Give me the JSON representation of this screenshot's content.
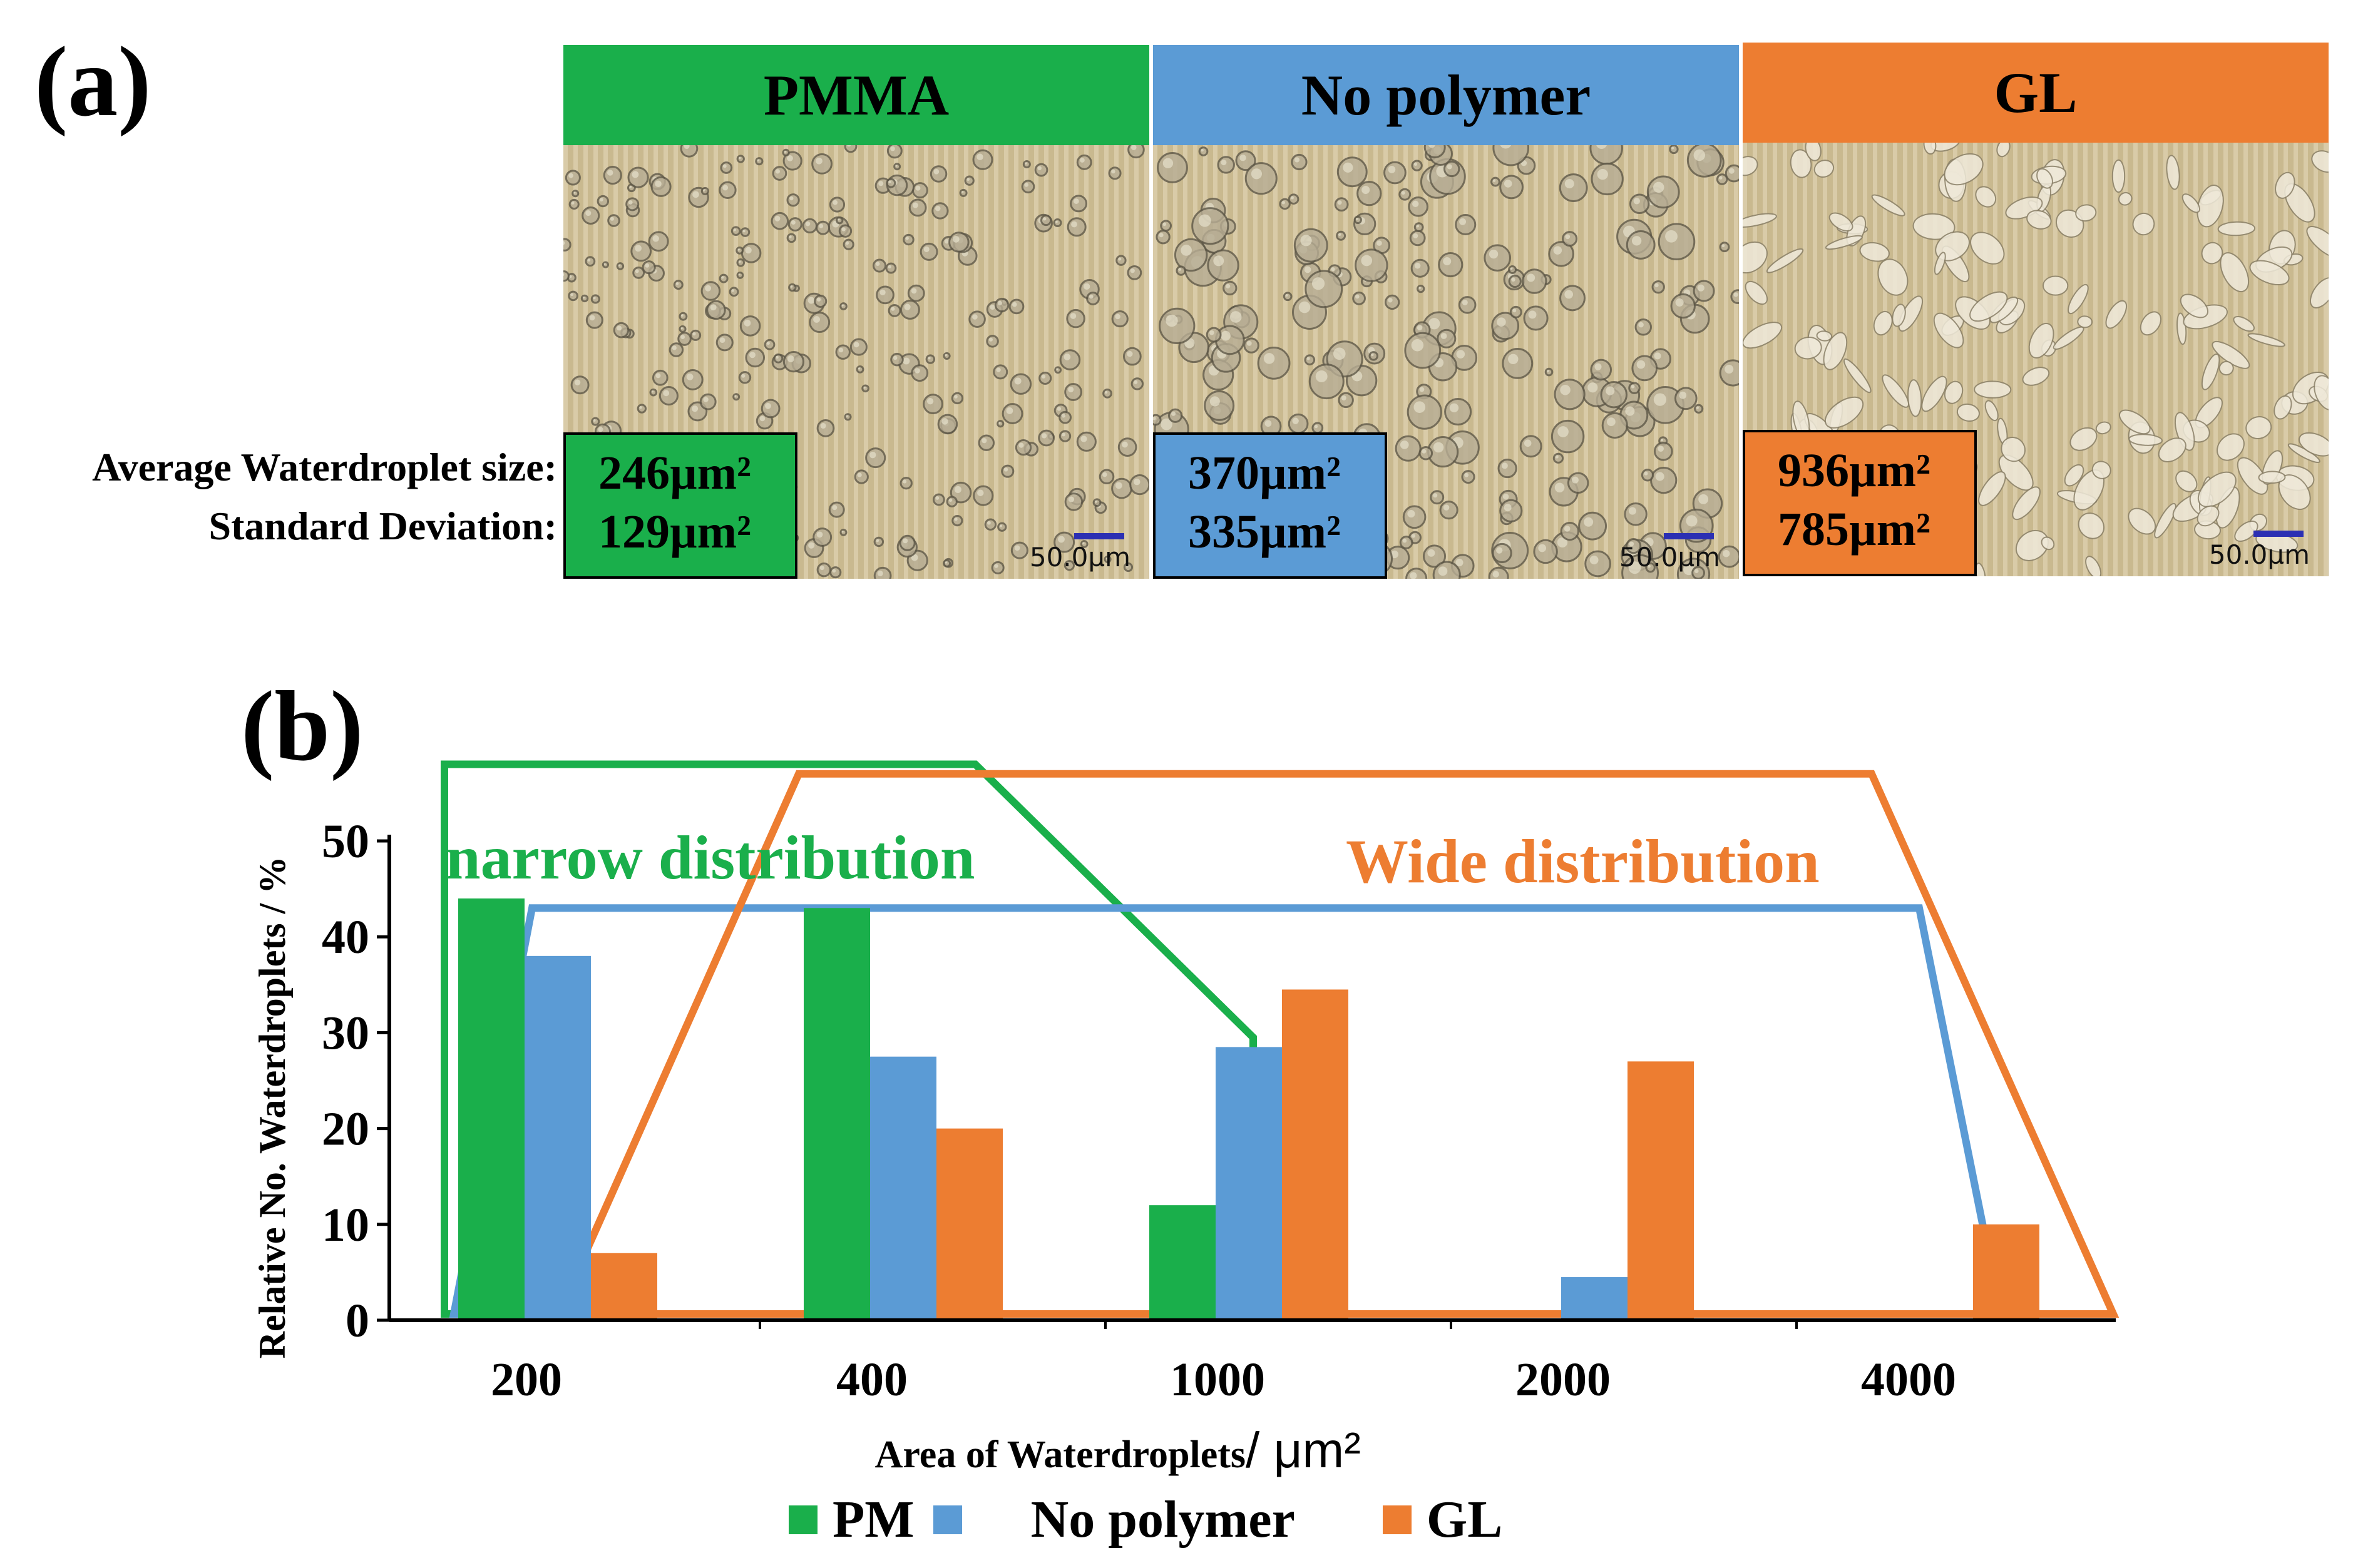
{
  "panel_a": {
    "label": "(a)",
    "row_labels": {
      "average": "Average Waterdroplet size:",
      "std": "Standard Deviation:"
    },
    "images": [
      {
        "title": "PMMA",
        "color": "#1aaf4b",
        "average": "246µm²",
        "std": "129µm²",
        "scale": "50.0µm"
      },
      {
        "title": "No polymer",
        "color": "#5b9bd5",
        "average": "370µm²",
        "std": "335µm²",
        "scale": "50.0µm"
      },
      {
        "title": "GL",
        "color": "#ed7d31",
        "average": "936µm²",
        "std": "785µm²",
        "scale": "50.0µm"
      }
    ]
  },
  "panel_b": {
    "label": "(b)"
  },
  "chart_data": {
    "type": "bar",
    "categories": [
      "200",
      "400",
      "1000",
      "2000",
      "4000"
    ],
    "series": [
      {
        "name": "PM",
        "color": "#1aaf4b",
        "values": [
          44,
          43,
          12,
          0,
          0
        ]
      },
      {
        "name": "No polymer",
        "color": "#5b9bd5",
        "values": [
          38,
          27.5,
          28.5,
          4.5,
          0
        ]
      },
      {
        "name": "GL",
        "color": "#ed7d31",
        "values": [
          7,
          20,
          34.5,
          27,
          10
        ]
      }
    ],
    "xlabel": "Area of Waterdroplets",
    "xlabel_unit": " / μm²",
    "ylabel": "Relative No. Waterdroplets / %",
    "ylim": [
      0,
      50
    ],
    "yticks": [
      0,
      10,
      20,
      30,
      40,
      50
    ],
    "annotations": [
      {
        "text": "narrow distribution",
        "color": "#1aaf4b"
      },
      {
        "text": "Wide distribution",
        "color": "#ed7d31"
      }
    ]
  }
}
